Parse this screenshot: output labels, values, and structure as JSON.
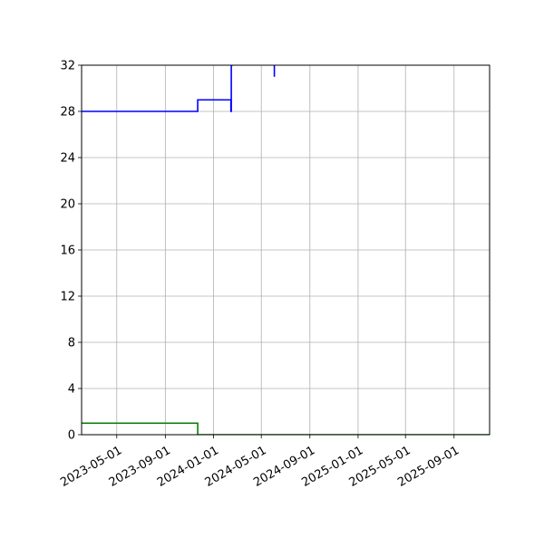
{
  "chart_data": {
    "type": "line",
    "title": "",
    "xlabel": "",
    "ylabel": "",
    "x_axis_type": "date",
    "xlim": [
      "2023-02-01",
      "2025-11-30"
    ],
    "ylim": [
      0,
      32
    ],
    "grid": true,
    "legend": "none",
    "x_ticks": [
      "2023-05-01",
      "2023-09-01",
      "2024-01-01",
      "2024-05-01",
      "2024-09-01",
      "2025-01-01",
      "2025-05-01",
      "2025-09-01"
    ],
    "y_ticks": [
      0,
      4,
      8,
      12,
      16,
      20,
      24,
      28,
      32
    ],
    "series": [
      {
        "color": "#0000ff",
        "step": true,
        "segments": [
          {
            "x": [
              "2023-02-01",
              "2023-11-22",
              "2023-11-22",
              "2024-02-14",
              "2024-02-14",
              "2024-02-15",
              "2024-02-15",
              "2024-02-17",
              "2024-02-17"
            ],
            "y": [
              28,
              28,
              29,
              29,
              28,
              28,
              32,
              32,
              33
            ]
          },
          {
            "x": [
              "2024-06-03",
              "2024-06-03"
            ],
            "y": [
              33,
              31
            ]
          }
        ]
      },
      {
        "color": "#008000",
        "step": true,
        "segments": [
          {
            "x": [
              "2023-02-01",
              "2023-11-22",
              "2023-11-22",
              "2025-11-30"
            ],
            "y": [
              1,
              1,
              0,
              0
            ]
          }
        ]
      }
    ]
  }
}
